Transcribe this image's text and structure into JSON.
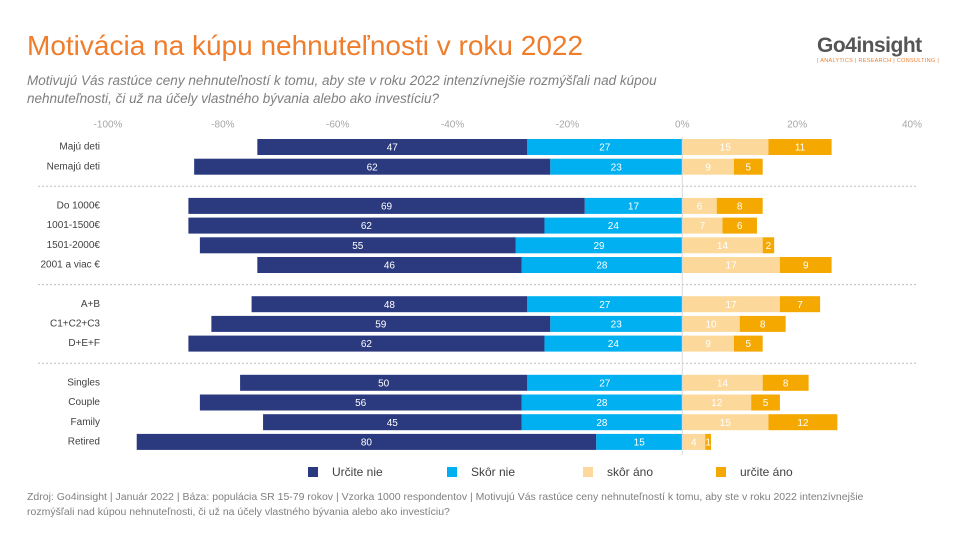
{
  "chart_data": {
    "type": "diverging_stacked_bar",
    "title": "Motivácia na kúpu nehnuteľnosti v roku 2022",
    "subtitle": "Motivujú Vás rastúce ceny nehnuteľností k tomu, aby ste v roku 2022 intenzívnejšie rozmýšľali nad kúpou nehnuteľnosti, či už na účely vlastného bývania alebo ako investíciu?",
    "logo": "Go4insight",
    "logo_tagline": "| ANALYTICS | RESEARCH | CONSULTING |",
    "source": "Zdroj: Go4insight | Január 2022 | Báza: populácia SR 15-79 rokov | Vzorka 1000 respondentov | Motivujú Vás rastúce ceny nehnuteľností k tomu, aby ste v roku 2022 intenzívnejšie rozmýšľali nad kúpou nehnuteľnosti, či už na účely vlastného bývania alebo ako investíciu?",
    "categories": [
      "Majú deti",
      "Nemajú deti",
      "Do 1000€",
      "1001-1500€",
      "1501-2000€",
      "2001 a viac €",
      "A+B",
      "C1+C2+C3",
      "D+E+F",
      "Singles",
      "Couple",
      "Family",
      "Retired"
    ],
    "xlim": [
      -100,
      40
    ],
    "xticks": [
      {
        "value": -100,
        "label": "-100%"
      },
      {
        "value": -80,
        "label": "-80%"
      },
      {
        "value": -60,
        "label": "-60%"
      },
      {
        "value": -40,
        "label": "-40%"
      },
      {
        "value": -20,
        "label": "-20%"
      },
      {
        "value": 0,
        "label": "0%"
      },
      {
        "value": 20,
        "label": "20%"
      },
      {
        "value": 40,
        "label": "40%"
      }
    ],
    "series": [
      {
        "name": "Určite nie",
        "color": "#2b3a7f",
        "values": [
          -47,
          -62,
          -69,
          -62,
          -55,
          -46,
          -48,
          -59,
          -62,
          -50,
          -56,
          -45,
          -80
        ],
        "value_labels": [
          "47",
          "62",
          "69",
          "62",
          "55",
          "46",
          "48",
          "59",
          "62",
          "50",
          "56",
          "45",
          "80"
        ]
      },
      {
        "name": "Skôr nie",
        "color": "#00b0f0",
        "values": [
          -27,
          -23,
          -17,
          -24,
          -29,
          -28,
          -27,
          -23,
          -24,
          -27,
          -28,
          -28,
          -15
        ],
        "value_labels": [
          "27",
          "23",
          "17",
          "24",
          "29",
          "28",
          "27",
          "23",
          "24",
          "27",
          "28",
          "28",
          "15"
        ]
      },
      {
        "name": "skôr áno",
        "color": "#fcd99a",
        "values": [
          15,
          9,
          6,
          7,
          14,
          17,
          17,
          10,
          9,
          14,
          12,
          15,
          4
        ]
      },
      {
        "name": "určite áno",
        "color": "#f5a800",
        "values": [
          11,
          5,
          8,
          6,
          2,
          9,
          7,
          8,
          5,
          8,
          5,
          12,
          1
        ]
      }
    ]
  }
}
